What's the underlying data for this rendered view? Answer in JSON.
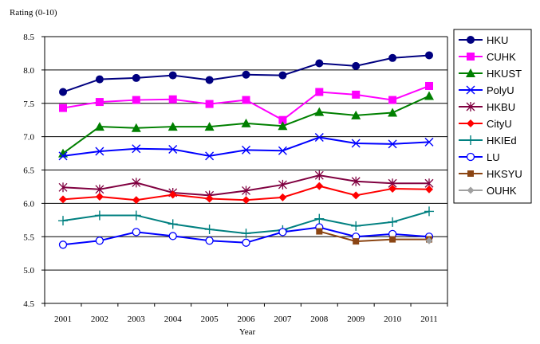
{
  "chart_data": {
    "type": "line",
    "ylabel": "Rating (0-10)",
    "xlabel": "Year",
    "ylim": [
      4.5,
      8.5
    ],
    "yticks": [
      "4.5",
      "5.0",
      "5.5",
      "6.0",
      "6.5",
      "7.0",
      "7.5",
      "8.0",
      "8.5"
    ],
    "x": [
      "2001",
      "2002",
      "2003",
      "2004",
      "2005",
      "2006",
      "2007",
      "2008",
      "2009",
      "2010",
      "2011"
    ],
    "grid": "horizontal",
    "legend": "right",
    "series": [
      {
        "name": "HKU",
        "color": "#000080",
        "marker": "filled-circle",
        "values": [
          7.67,
          7.86,
          7.88,
          7.92,
          7.85,
          7.93,
          7.92,
          8.1,
          8.06,
          8.18,
          8.22
        ]
      },
      {
        "name": "CUHK",
        "color": "#FF00FF",
        "marker": "square",
        "values": [
          7.43,
          7.52,
          7.55,
          7.56,
          7.49,
          7.55,
          7.25,
          7.67,
          7.63,
          7.55,
          7.76
        ]
      },
      {
        "name": "HKUST",
        "color": "#008000",
        "marker": "triangle",
        "values": [
          6.75,
          7.15,
          7.13,
          7.15,
          7.15,
          7.2,
          7.16,
          7.37,
          7.32,
          7.36,
          7.61
        ]
      },
      {
        "name": "PolyU",
        "color": "#0000FF",
        "marker": "x",
        "values": [
          6.71,
          6.78,
          6.82,
          6.81,
          6.71,
          6.8,
          6.79,
          6.99,
          6.9,
          6.89,
          6.92
        ]
      },
      {
        "name": "HKBU",
        "color": "#800040",
        "marker": "star",
        "values": [
          6.24,
          6.21,
          6.31,
          6.16,
          6.12,
          6.19,
          6.28,
          6.42,
          6.33,
          6.3,
          6.3
        ]
      },
      {
        "name": "CityU",
        "color": "#FF0000",
        "marker": "diamond",
        "values": [
          6.06,
          6.1,
          6.05,
          6.13,
          6.07,
          6.05,
          6.09,
          6.26,
          6.12,
          6.22,
          6.21
        ]
      },
      {
        "name": "HKIEd",
        "color": "#008080",
        "marker": "plus",
        "values": [
          5.74,
          5.82,
          5.82,
          5.69,
          5.61,
          5.55,
          5.6,
          5.77,
          5.66,
          5.72,
          5.88
        ]
      },
      {
        "name": "LU",
        "color": "#0000FF",
        "marker": "open-circle",
        "values": [
          5.38,
          5.44,
          5.57,
          5.51,
          5.44,
          5.41,
          5.57,
          5.64,
          5.5,
          5.54,
          5.5
        ]
      },
      {
        "name": "HKSYU",
        "color": "#8B4513",
        "marker": "square-small",
        "values": [
          null,
          null,
          null,
          null,
          null,
          null,
          null,
          5.58,
          5.43,
          5.46,
          5.46
        ]
      },
      {
        "name": "OUHK",
        "color": "#A0A0A0",
        "marker": "diamond-small",
        "values": [
          null,
          null,
          null,
          null,
          null,
          null,
          null,
          null,
          null,
          null,
          5.44
        ]
      }
    ]
  }
}
